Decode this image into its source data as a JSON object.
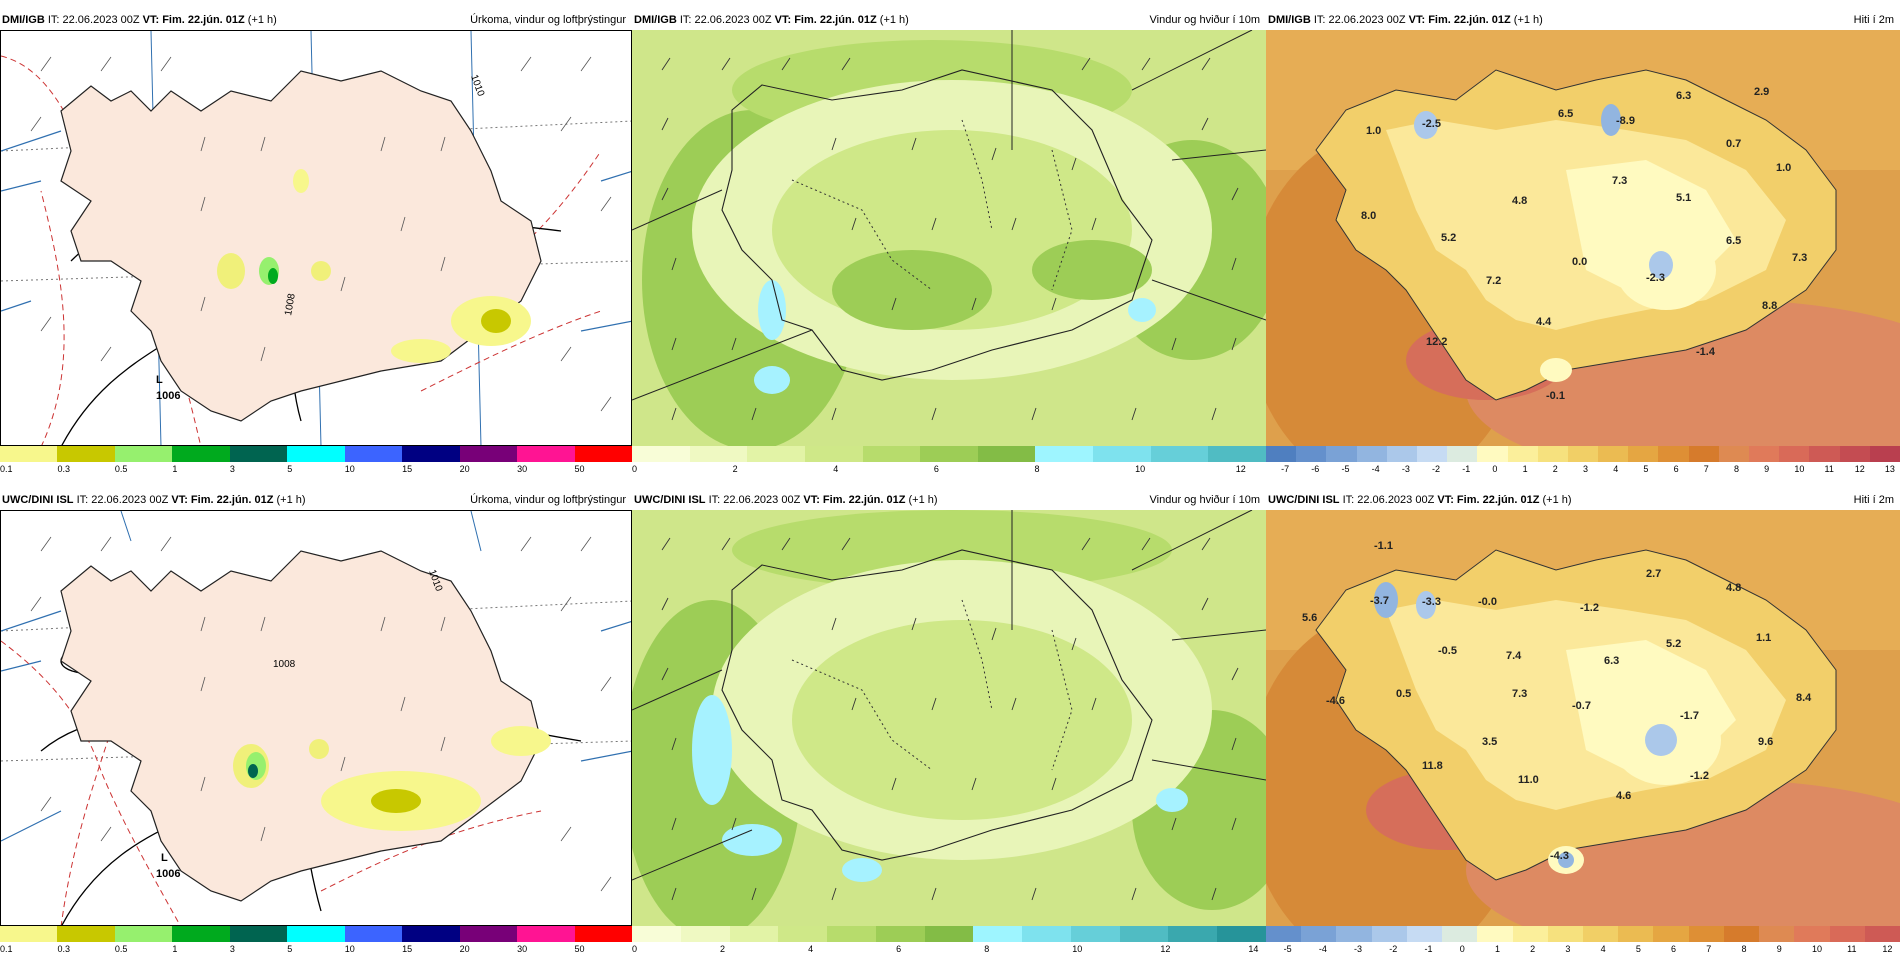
{
  "rows": [
    {
      "model": "DMI/IGB",
      "init": "IT: 22.06.2023 00Z",
      "vt_label": "VT:",
      "valid": "Fim. 22.jún. 01Z",
      "lead": "(+1 h)",
      "panels": {
        "precip": {
          "title_right": "Úrkoma, vindur og loftþrýstingur",
          "pressure_labels": [
            "1006",
            "1008",
            "1010"
          ],
          "low_label": "L"
        },
        "wind": {
          "title_right": "Vindur og hviður í 10m"
        },
        "temp": {
          "title_right": "Hiti í 2m",
          "values": [
            "1.0",
            "-2.5",
            "6.5",
            "-8.9",
            "6.3",
            "2.9",
            "0.7",
            "1.0",
            "8.0",
            "4.8",
            "7.3",
            "5.1",
            "5.2",
            "7.2",
            "0.0",
            "-2.3",
            "6.5",
            "7.3",
            "4.4",
            "8.8",
            "12.2",
            "-1.4",
            "-0.1"
          ]
        }
      }
    },
    {
      "model": "UWC/DINI ISL",
      "init": "IT: 22.06.2023 00Z",
      "vt_label": "VT:",
      "valid": "Fim. 22.jún. 01Z",
      "lead": "(+1 h)",
      "panels": {
        "precip": {
          "title_right": "Úrkoma, vindur og loftþrýstingur",
          "pressure_labels": [
            "1006",
            "1008",
            "1010"
          ],
          "low_label": "L"
        },
        "wind": {
          "title_right": "Vindur og hviður í 10m"
        },
        "temp": {
          "title_right": "Hiti í 2m",
          "values": [
            "-1.1",
            "-3.7",
            "-3.3",
            "-0.0",
            "-1.2",
            "2.7",
            "4.8",
            "5.6",
            "-0.5",
            "7.4",
            "6.3",
            "5.2",
            "1.1",
            "-4.6",
            "0.5",
            "7.3",
            "-0.7",
            "-1.7",
            "8.4",
            "3.5",
            "9.6",
            "11.8",
            "11.0",
            "-1.2",
            "4.6",
            "-4.3"
          ]
        }
      }
    }
  ],
  "legends": {
    "precip": {
      "colors": [
        "#f7f78c",
        "#c8c800",
        "#96f06e",
        "#00aa1e",
        "#006450",
        "#00ffff",
        "#3c64ff",
        "#000082",
        "#780078",
        "#ff1493",
        "#ff0000"
      ],
      "ticks": [
        "0.1",
        "0.3",
        "0.5",
        "1",
        "3",
        "5",
        "10",
        "15",
        "20",
        "30",
        "50"
      ]
    },
    "wind_top": {
      "colors": [
        "#f8fdd7",
        "#eff9c2",
        "#e2f3a6",
        "#cfe888",
        "#b7dc6c",
        "#9dcd56",
        "#83bc46",
        "#9ef5ff",
        "#7ee2ee",
        "#66cfd9",
        "#50bcc3"
      ],
      "ticks": [
        "0",
        "2",
        "4",
        "6",
        "8",
        "10",
        "12"
      ]
    },
    "wind_bottom": {
      "colors": [
        "#f8fdd7",
        "#eff9c2",
        "#e2f3a6",
        "#cfe888",
        "#b7dc6c",
        "#9dcd56",
        "#83bc46",
        "#9ef5ff",
        "#7ee2ee",
        "#66cfd9",
        "#50bcc3",
        "#3aa8ae",
        "#26949a"
      ],
      "ticks": [
        "0",
        "2",
        "4",
        "6",
        "8",
        "10",
        "12",
        "14"
      ]
    },
    "temp_top": {
      "colors": [
        "#4f7fc0",
        "#6490cc",
        "#7aa2d6",
        "#92b5e0",
        "#abc8ea",
        "#c6dbf3",
        "#dcebe0",
        "#fffac0",
        "#fbef9b",
        "#f6e17e",
        "#f1cf66",
        "#ebbb52",
        "#e5a642",
        "#de8f35",
        "#d67b2c",
        "#de8a52",
        "#e07a5a",
        "#d96a58",
        "#ce5a55",
        "#c44c52",
        "#b93f4f"
      ],
      "ticks": [
        "-7",
        "-6",
        "-5",
        "-4",
        "-3",
        "-2",
        "-1",
        "0",
        "1",
        "2",
        "3",
        "4",
        "5",
        "6",
        "7",
        "8",
        "9",
        "10",
        "11",
        "12",
        "13"
      ]
    },
    "temp_bottom": {
      "colors": [
        "#6490cc",
        "#7aa2d6",
        "#92b5e0",
        "#abc8ea",
        "#c6dbf3",
        "#dcebe0",
        "#fffac0",
        "#fbef9b",
        "#f6e17e",
        "#f1cf66",
        "#ebbb52",
        "#e5a642",
        "#de8f35",
        "#d67b2c",
        "#de8a52",
        "#e07a5a",
        "#d96a58",
        "#ce5a55"
      ],
      "ticks": [
        "-5",
        "-4",
        "-3",
        "-2",
        "-1",
        "0",
        "1",
        "2",
        "3",
        "4",
        "5",
        "6",
        "7",
        "8",
        "9",
        "10",
        "11",
        "12"
      ]
    }
  }
}
